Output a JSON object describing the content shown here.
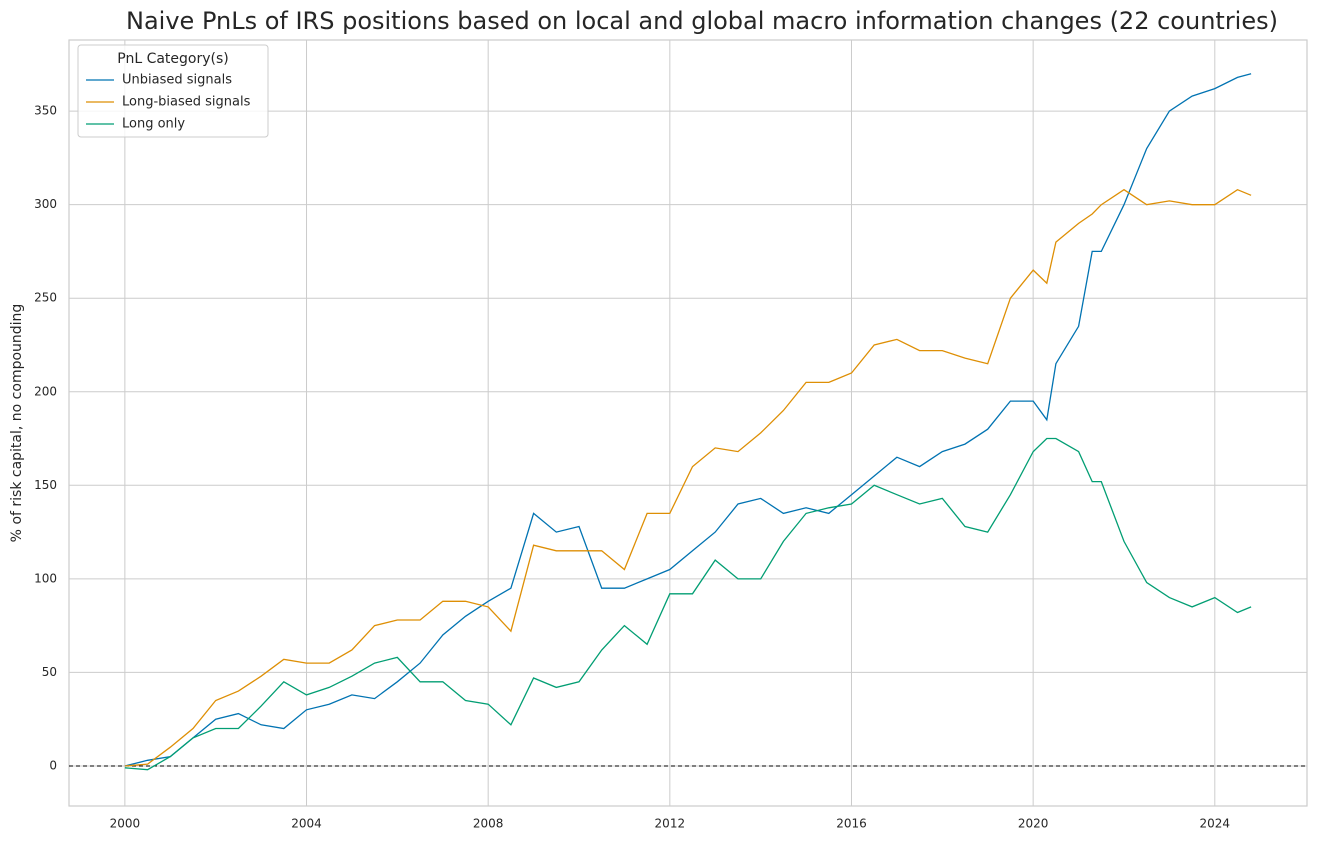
{
  "chart_data": {
    "type": "line",
    "title": "Naive PnLs of IRS positions based on local and global macro information changes (22 countries)",
    "y_label": "% of risk capital, no compounding",
    "legend_title": "PnL Category(s)",
    "legend_position": "upper left",
    "grid": true,
    "hline": 0,
    "x": [
      2000,
      2000.5,
      2001,
      2001.5,
      2002,
      2002.5,
      2003,
      2003.5,
      2004,
      2004.5,
      2005,
      2005.5,
      2006,
      2006.5,
      2007,
      2007.5,
      2008,
      2008.5,
      2009,
      2009.5,
      2010,
      2010.5,
      2011,
      2011.5,
      2012,
      2012.5,
      2013,
      2013.5,
      2014,
      2014.5,
      2015,
      2015.5,
      2016,
      2016.5,
      2017,
      2017.5,
      2018,
      2018.5,
      2019,
      2019.5,
      2020,
      2020.3,
      2020.5,
      2021,
      2021.3,
      2021.5,
      2022,
      2022.5,
      2023,
      2023.5,
      2024,
      2024.5,
      2024.8
    ],
    "series": [
      {
        "name": "Unbiased signals",
        "color": "#0173b2",
        "values": [
          0,
          3,
          5,
          15,
          25,
          28,
          22,
          20,
          30,
          33,
          38,
          36,
          45,
          55,
          70,
          80,
          88,
          95,
          135,
          125,
          128,
          95,
          95,
          100,
          105,
          115,
          125,
          140,
          143,
          135,
          138,
          135,
          145,
          155,
          165,
          160,
          168,
          172,
          180,
          195,
          195,
          185,
          215,
          235,
          275,
          275,
          300,
          330,
          350,
          358,
          362,
          368,
          370
        ]
      },
      {
        "name": "Long-biased signals",
        "color": "#de8f05",
        "values": [
          0,
          1,
          10,
          20,
          35,
          40,
          48,
          57,
          55,
          55,
          62,
          75,
          78,
          78,
          88,
          88,
          85,
          72,
          118,
          115,
          115,
          115,
          105,
          135,
          135,
          160,
          170,
          168,
          178,
          190,
          205,
          205,
          210,
          225,
          228,
          222,
          222,
          218,
          215,
          250,
          265,
          258,
          280,
          290,
          295,
          300,
          308,
          300,
          302,
          300,
          300,
          308,
          305
        ]
      },
      {
        "name": "Long only",
        "color": "#029e73",
        "values": [
          -1,
          -2,
          5,
          15,
          20,
          20,
          32,
          45,
          38,
          42,
          48,
          55,
          58,
          45,
          45,
          35,
          33,
          22,
          47,
          42,
          45,
          62,
          75,
          65,
          92,
          92,
          110,
          100,
          100,
          120,
          135,
          138,
          140,
          150,
          145,
          140,
          143,
          128,
          125,
          145,
          168,
          175,
          175,
          168,
          152,
          152,
          120,
          98,
          90,
          85,
          90,
          82,
          85
        ]
      }
    ],
    "xlim": [
      1998.77,
      2026.03
    ],
    "xticks": [
      2000,
      2004,
      2008,
      2012,
      2016,
      2020,
      2024
    ],
    "ylim": [
      -21.4,
      388
    ],
    "yticks": [
      0,
      50,
      100,
      150,
      200,
      250,
      300,
      350
    ]
  }
}
